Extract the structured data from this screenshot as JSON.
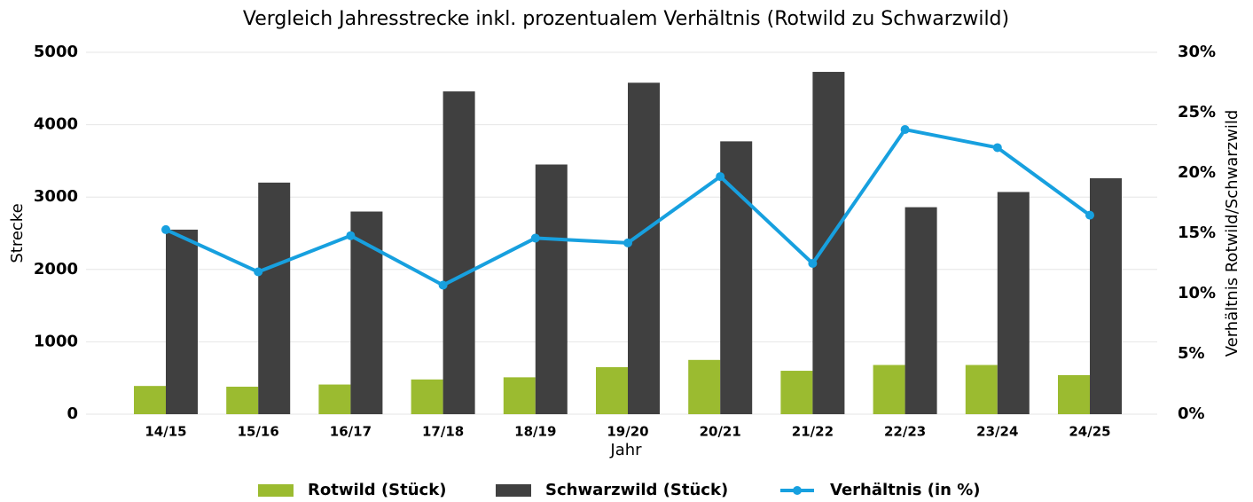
{
  "chart_data": {
    "type": "bar-line",
    "title": "Vergleich Jahresstrecke inkl. prozentualem Verhältnis (Rotwild zu Schwarzwild)",
    "xlabel": "Jahr",
    "ylabel": "Strecke",
    "y2label": "Verhältnis Rotwild/Schwarzwild",
    "categories": [
      "14/15",
      "15/16",
      "16/17",
      "17/18",
      "18/19",
      "19/20",
      "20/21",
      "21/22",
      "22/23",
      "23/24",
      "24/25"
    ],
    "series": [
      {
        "name": "Rotwild (Stück)",
        "type": "bar",
        "color": "#9bbb30",
        "values": [
          390,
          380,
          410,
          480,
          510,
          650,
          750,
          600,
          680,
          680,
          540
        ]
      },
      {
        "name": "Schwarzwild (Stück)",
        "type": "bar",
        "color": "#404040",
        "values": [
          2550,
          3200,
          2800,
          4460,
          3450,
          4580,
          3770,
          4730,
          2860,
          3070,
          3260
        ]
      },
      {
        "name": "Verhältnis (in %)",
        "type": "line",
        "axis": "y2",
        "color": "#17a0df",
        "values": [
          15.3,
          11.8,
          14.8,
          10.7,
          14.6,
          14.2,
          19.7,
          12.5,
          23.6,
          22.1,
          16.5
        ]
      }
    ],
    "ylim": [
      0,
      5000
    ],
    "yticks": [
      0,
      1000,
      2000,
      3000,
      4000,
      5000
    ],
    "y2lim": [
      0,
      30
    ],
    "y2ticks": [
      {
        "value": 0,
        "label": "0%"
      },
      {
        "value": 5,
        "label": "5%"
      },
      {
        "value": 10,
        "label": "10%"
      },
      {
        "value": 15,
        "label": "15%"
      },
      {
        "value": 20,
        "label": "20%"
      },
      {
        "value": 25,
        "label": "25%"
      },
      {
        "value": 30,
        "label": "30%"
      }
    ],
    "grid": true,
    "legend": "bottom"
  }
}
